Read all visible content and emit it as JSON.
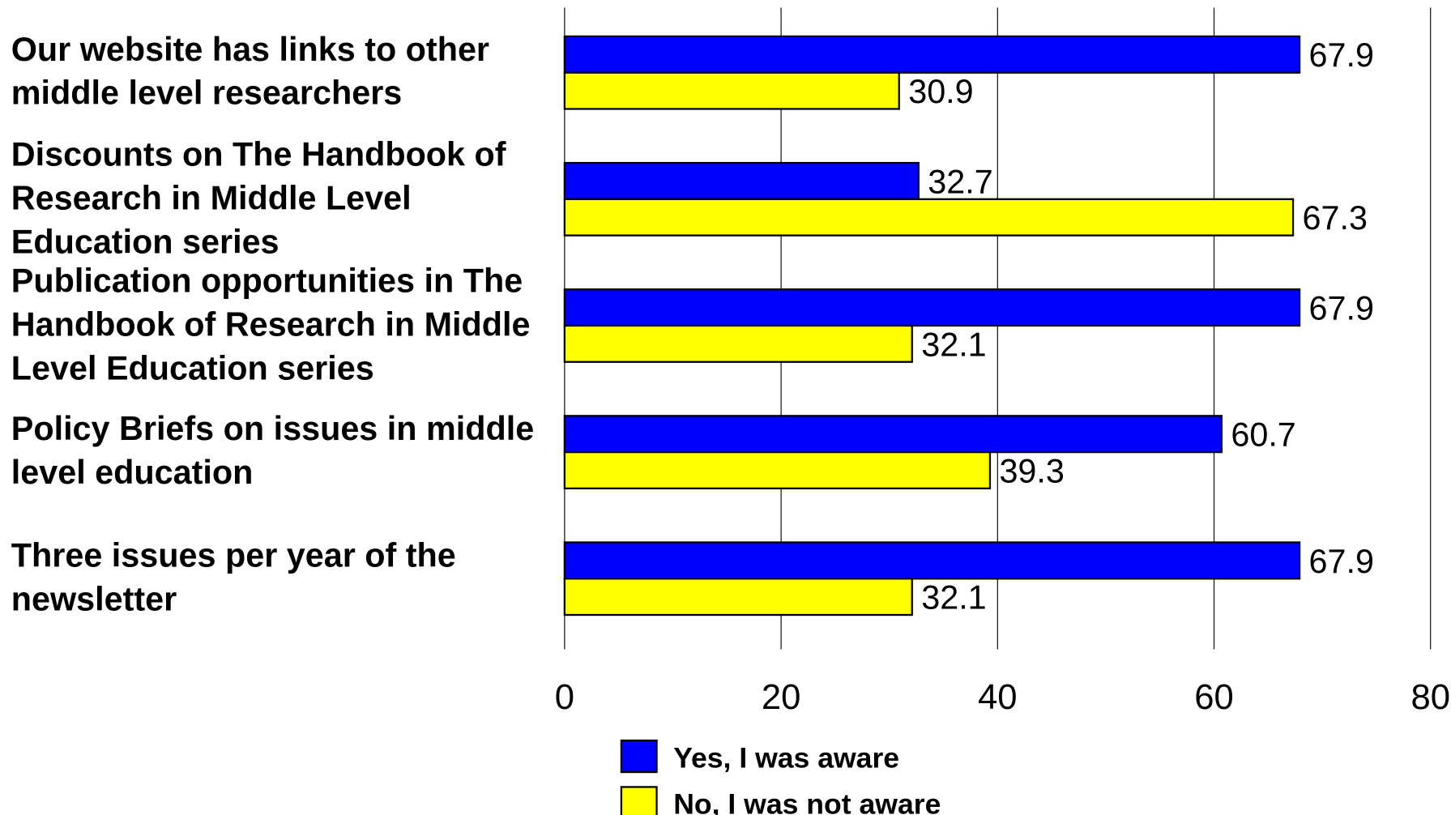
{
  "chart_data": {
    "type": "bar",
    "orientation": "horizontal",
    "categories": [
      "Our website has links to other middle level researchers",
      "Discounts on The Handbook of Research in Middle Level Education series",
      "Publication opportunities in The Handbook of Research in Middle Level Education series",
      "Policy Briefs on issues in middle level education",
      "Three issues per year of the newsletter"
    ],
    "series": [
      {
        "name": "Yes, I was aware",
        "color": "#0000ff",
        "values": [
          67.9,
          32.7,
          67.9,
          60.7,
          67.9
        ]
      },
      {
        "name": "No, I was not aware",
        "color": "#ffff00",
        "values": [
          30.9,
          67.3,
          32.1,
          39.3,
          32.1
        ]
      }
    ],
    "xlim": [
      0,
      80
    ],
    "xticks": [
      0,
      20,
      40,
      60,
      80
    ],
    "grid": true,
    "legend": "bottom"
  }
}
